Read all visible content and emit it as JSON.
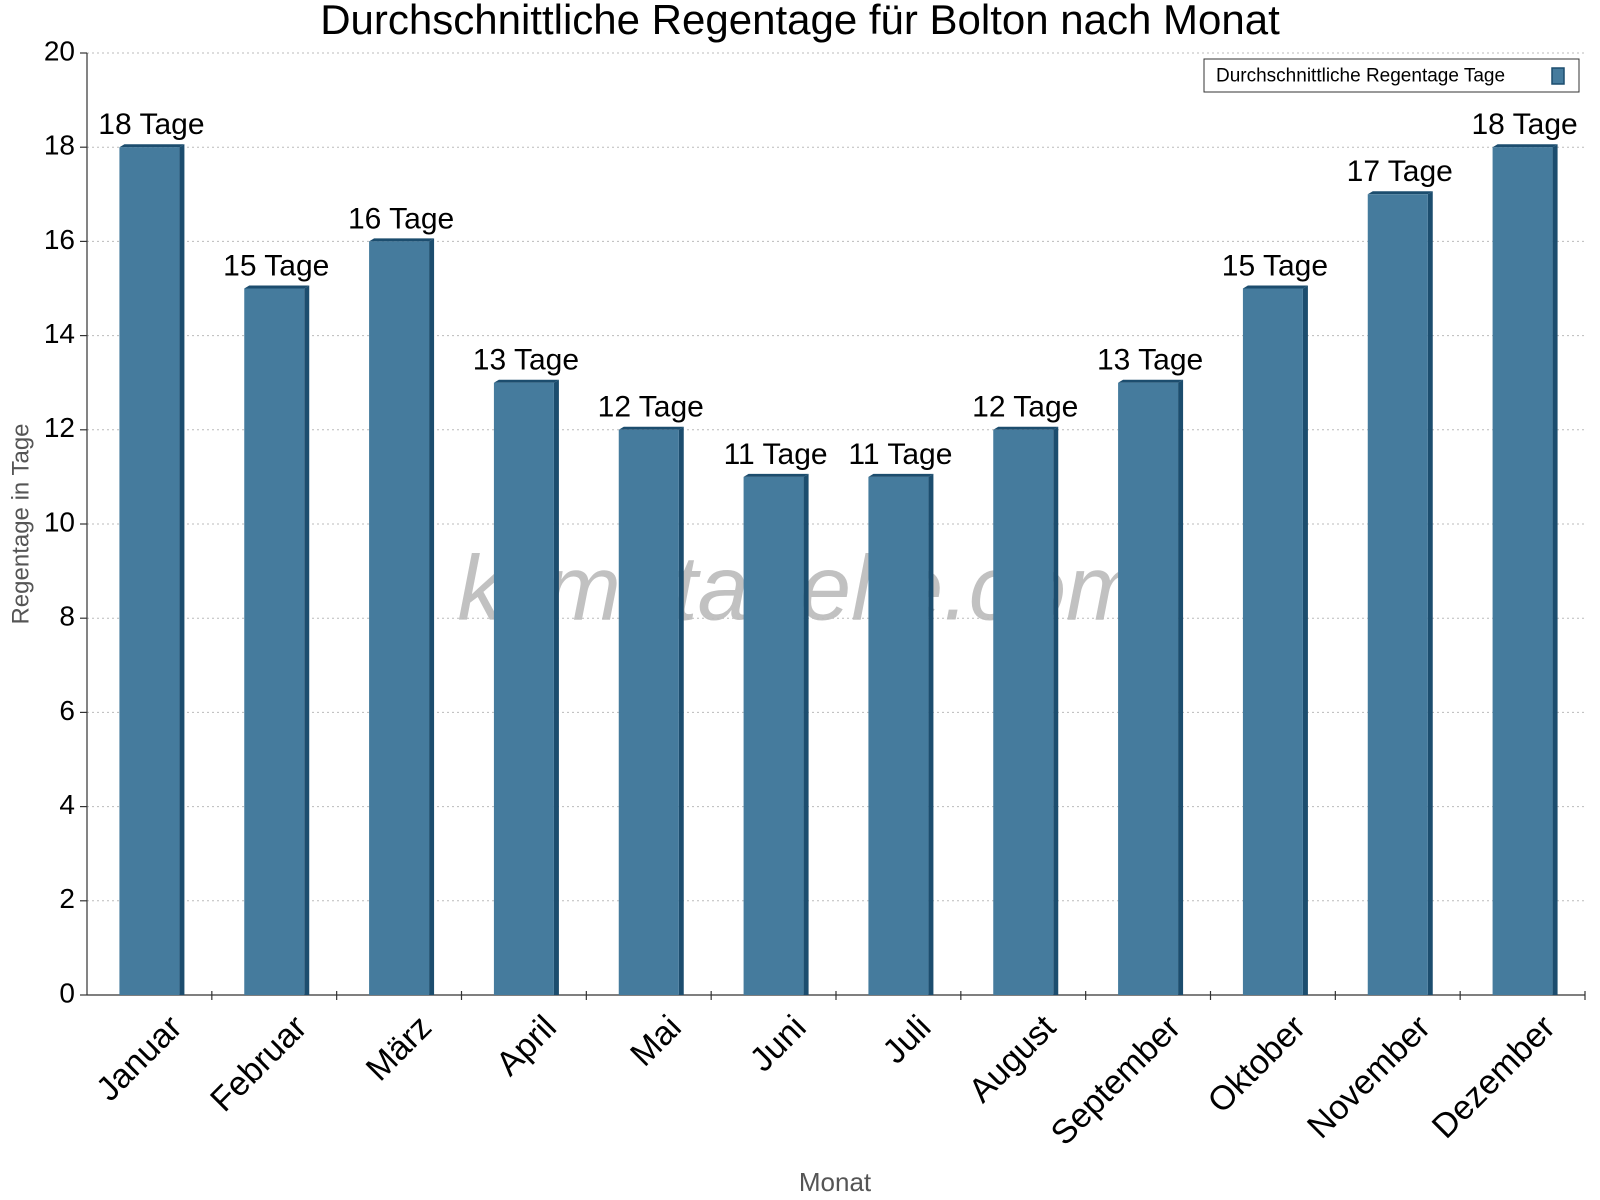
{
  "chart_data": {
    "type": "bar",
    "title": "Durchschnittliche Regentage für Bolton nach Monat",
    "x_label": "Monat",
    "y_label": "Regentage in Tage",
    "watermark": "klimatabelle.com",
    "categories": [
      "Januar",
      "Februar",
      "März",
      "April",
      "Mai",
      "Juni",
      "Juli",
      "August",
      "September",
      "Oktober",
      "November",
      "Dezember"
    ],
    "series": [
      {
        "name": "Durchschnittliche Regentage Tage",
        "color": "#457b9d",
        "values": [
          18,
          15,
          16,
          13,
          12,
          11,
          11,
          12,
          13,
          15,
          17,
          18
        ],
        "value_labels": [
          "18 Tage",
          "15 Tage",
          "16 Tage",
          "13 Tage",
          "12 Tage",
          "11 Tage",
          "11 Tage",
          "12 Tage",
          "13 Tage",
          "15 Tage",
          "17 Tage",
          "18 Tage"
        ]
      }
    ],
    "ylim": [
      0,
      20
    ],
    "yticks": [
      0,
      2,
      4,
      6,
      8,
      10,
      12,
      14,
      16,
      18,
      20
    ],
    "grid": true,
    "legend": "top-right"
  }
}
